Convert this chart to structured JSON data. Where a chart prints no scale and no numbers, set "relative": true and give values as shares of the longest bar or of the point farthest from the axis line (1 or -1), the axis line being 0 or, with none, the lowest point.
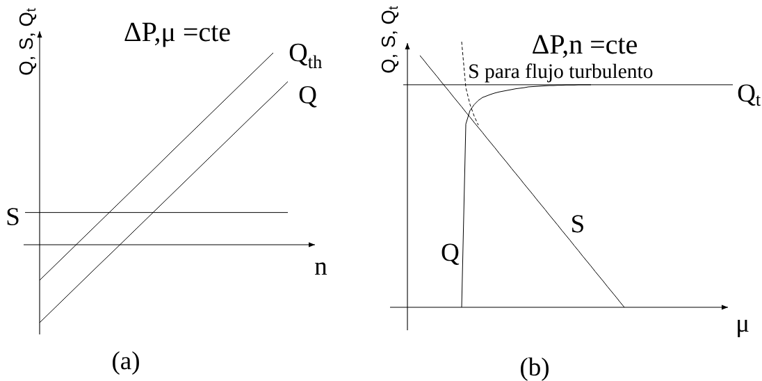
{
  "chart_data": [
    {
      "type": "line",
      "title": "ΔP,μ =cte",
      "xlabel": "n",
      "ylabel": "Q, S, Q$_{t}$",
      "relative": true,
      "annotations": [
        "(a)"
      ],
      "categories": [
        null,
        null,
        null,
        null,
        null,
        null,
        null,
        null,
        null,
        null,
        null,
        null,
        null,
        null,
        null,
        null,
        null,
        null,
        null
      ],
      "series": [
        {
          "name": "Q$_{th}$",
          "color": "#000000",
          "values": [
            null,
            -0.185,
            -0.111,
            -0.037,
            0.037,
            0.111,
            0.185,
            0.259,
            0.333,
            0.407,
            0.482,
            0.556,
            0.63,
            0.704,
            0.778,
            0.852,
            0.926,
            1,
            null
          ]
        },
        {
          "name": "Q",
          "color": "#000000",
          "values": [
            null,
            -0.406,
            -0.332,
            -0.258,
            -0.184,
            -0.11,
            -0.037,
            0.037,
            0.111,
            0.185,
            0.259,
            0.333,
            0.407,
            0.481,
            0.555,
            0.629,
            0.703,
            0.776,
            0.85
          ]
        },
        {
          "name": "S",
          "color": "#000000",
          "values": [
            0.168,
            0.168,
            0.168,
            0.168,
            0.168,
            0.168,
            0.168,
            0.168,
            0.168,
            0.168,
            0.168,
            0.168,
            0.168,
            0.168,
            0.168,
            0.168,
            0.168,
            0.168,
            0.168
          ]
        }
      ]
    },
    {
      "type": "line",
      "title": "ΔP,n =cte",
      "xlabel": "μ",
      "ylabel": "Q, S, Q$_{t}$",
      "relative": true,
      "annotations": [
        "(b)"
      ],
      "categories": [
        null,
        null,
        null,
        null,
        null,
        null,
        null,
        null,
        null,
        null,
        null,
        null,
        null,
        null,
        null,
        null,
        null,
        null,
        null,
        null,
        null,
        null,
        null,
        null,
        null,
        null,
        null,
        null,
        null,
        null,
        null,
        null,
        null,
        null,
        null,
        null,
        null,
        null,
        null,
        null,
        null,
        null,
        null,
        null,
        null,
        null,
        null,
        null,
        null,
        null,
        null,
        null,
        null,
        null,
        null,
        null,
        null,
        null,
        null,
        null,
        null,
        null,
        null,
        null,
        null,
        null,
        null,
        null,
        null,
        null,
        null,
        null,
        null,
        null,
        null,
        null,
        null,
        null,
        null,
        null
      ],
      "series": [
        {
          "name": "Q$_{t}$",
          "color": "#000000",
          "values": [
            0.838,
            0.838,
            0.838,
            0.838,
            0.838,
            0.838,
            0.838,
            0.838,
            0.838,
            0.838,
            0.838,
            0.838,
            0.838,
            0.838,
            0.838,
            0.838,
            0.838,
            0.838,
            0.838,
            0.838,
            0.838,
            0.838,
            0.838,
            0.838,
            0.838,
            0.838,
            0.838,
            0.838,
            0.838,
            0.838,
            0.838,
            0.838,
            0.838,
            0.838,
            0.838,
            0.838,
            0.838,
            0.838,
            0.838,
            0.838,
            0.838,
            0.838,
            0.838,
            0.838,
            0.838,
            0.838,
            0.838,
            0.838,
            0.838,
            0.838,
            0.838,
            0.838,
            0.838,
            0.838,
            0.838,
            0.838,
            0.838,
            0.838,
            0.838,
            0.838,
            0.838,
            0.838,
            0.838,
            0.838,
            0.838,
            0.838,
            0.838,
            0.838,
            0.838,
            0.838,
            0.838,
            0.838,
            0.838,
            0.838,
            0.838,
            0.838,
            0.838,
            0.838,
            0.838,
            0.838
          ]
        },
        {
          "name": "S",
          "color": "#000000",
          "values": [
            null,
            null,
            null,
            null,
            0.948,
            0.929,
            0.909,
            0.89,
            0.871,
            0.851,
            0.832,
            0.813,
            0.793,
            0.774,
            0.755,
            0.735,
            0.716,
            0.696,
            0.677,
            0.658,
            0.638,
            0.619,
            0.6,
            0.58,
            0.561,
            0.542,
            0.522,
            0.503,
            0.484,
            0.464,
            0.445,
            0.426,
            0.406,
            0.387,
            0.368,
            0.348,
            0.329,
            0.31,
            0.29,
            0.271,
            0.252,
            0.232,
            0.213,
            0.193,
            0.174,
            0.155,
            0.135,
            0.116,
            0.097,
            0.077,
            0.058,
            0.039,
            0.019,
            0,
            null,
            null,
            null,
            null,
            null,
            null,
            null,
            null,
            null,
            null,
            null,
            null,
            null,
            null,
            null,
            null,
            null,
            null,
            null,
            null,
            null,
            null,
            null,
            null,
            null,
            null
          ]
        },
        {
          "name": "Q",
          "color": "#000000",
          "values": [
            null,
            null,
            null,
            null,
            null,
            null,
            null,
            null,
            null,
            null,
            null,
            null,
            null,
            null,
            0,
            0.69,
            0.741,
            0.763,
            0.779,
            0.79,
            0.796,
            0.802,
            0.807,
            0.811,
            0.814,
            0.817,
            0.82,
            0.823,
            0.825,
            0.827,
            0.83,
            0.831,
            0.832,
            0.833,
            0.834,
            0.835,
            0.835,
            0.836,
            0.836,
            0.837,
            0.837,
            0.837,
            0.838,
            0.838,
            0.838,
            0.838,
            null,
            null,
            null,
            null,
            null,
            null,
            null,
            null,
            null,
            null,
            null,
            null,
            null,
            null,
            null,
            null,
            null,
            null,
            null,
            null,
            null,
            null,
            null,
            null,
            null,
            null,
            null,
            null,
            null,
            null,
            null,
            null,
            null,
            null
          ]
        },
        {
          "name": "S para flujo turbulento",
          "color": "#000000",
          "line_style": "dashed",
          "values": [
            null,
            null,
            null,
            null,
            null,
            null,
            null,
            null,
            null,
            null,
            null,
            null,
            null,
            null,
            1,
            0.827,
            0.764,
            0.72,
            0.686,
            null,
            null,
            null,
            null,
            null,
            null,
            null,
            null,
            null,
            null,
            null,
            null,
            null,
            null,
            null,
            null,
            null,
            null,
            null,
            null,
            null,
            null,
            null,
            null,
            null,
            null,
            null,
            null,
            null,
            null,
            null,
            null,
            null,
            null,
            null,
            null,
            null,
            null,
            null,
            null,
            null,
            null,
            null,
            null,
            null,
            null,
            null,
            null,
            null,
            null,
            null,
            null,
            null,
            null,
            null,
            null,
            null,
            null,
            null,
            null,
            null
          ]
        }
      ]
    }
  ]
}
